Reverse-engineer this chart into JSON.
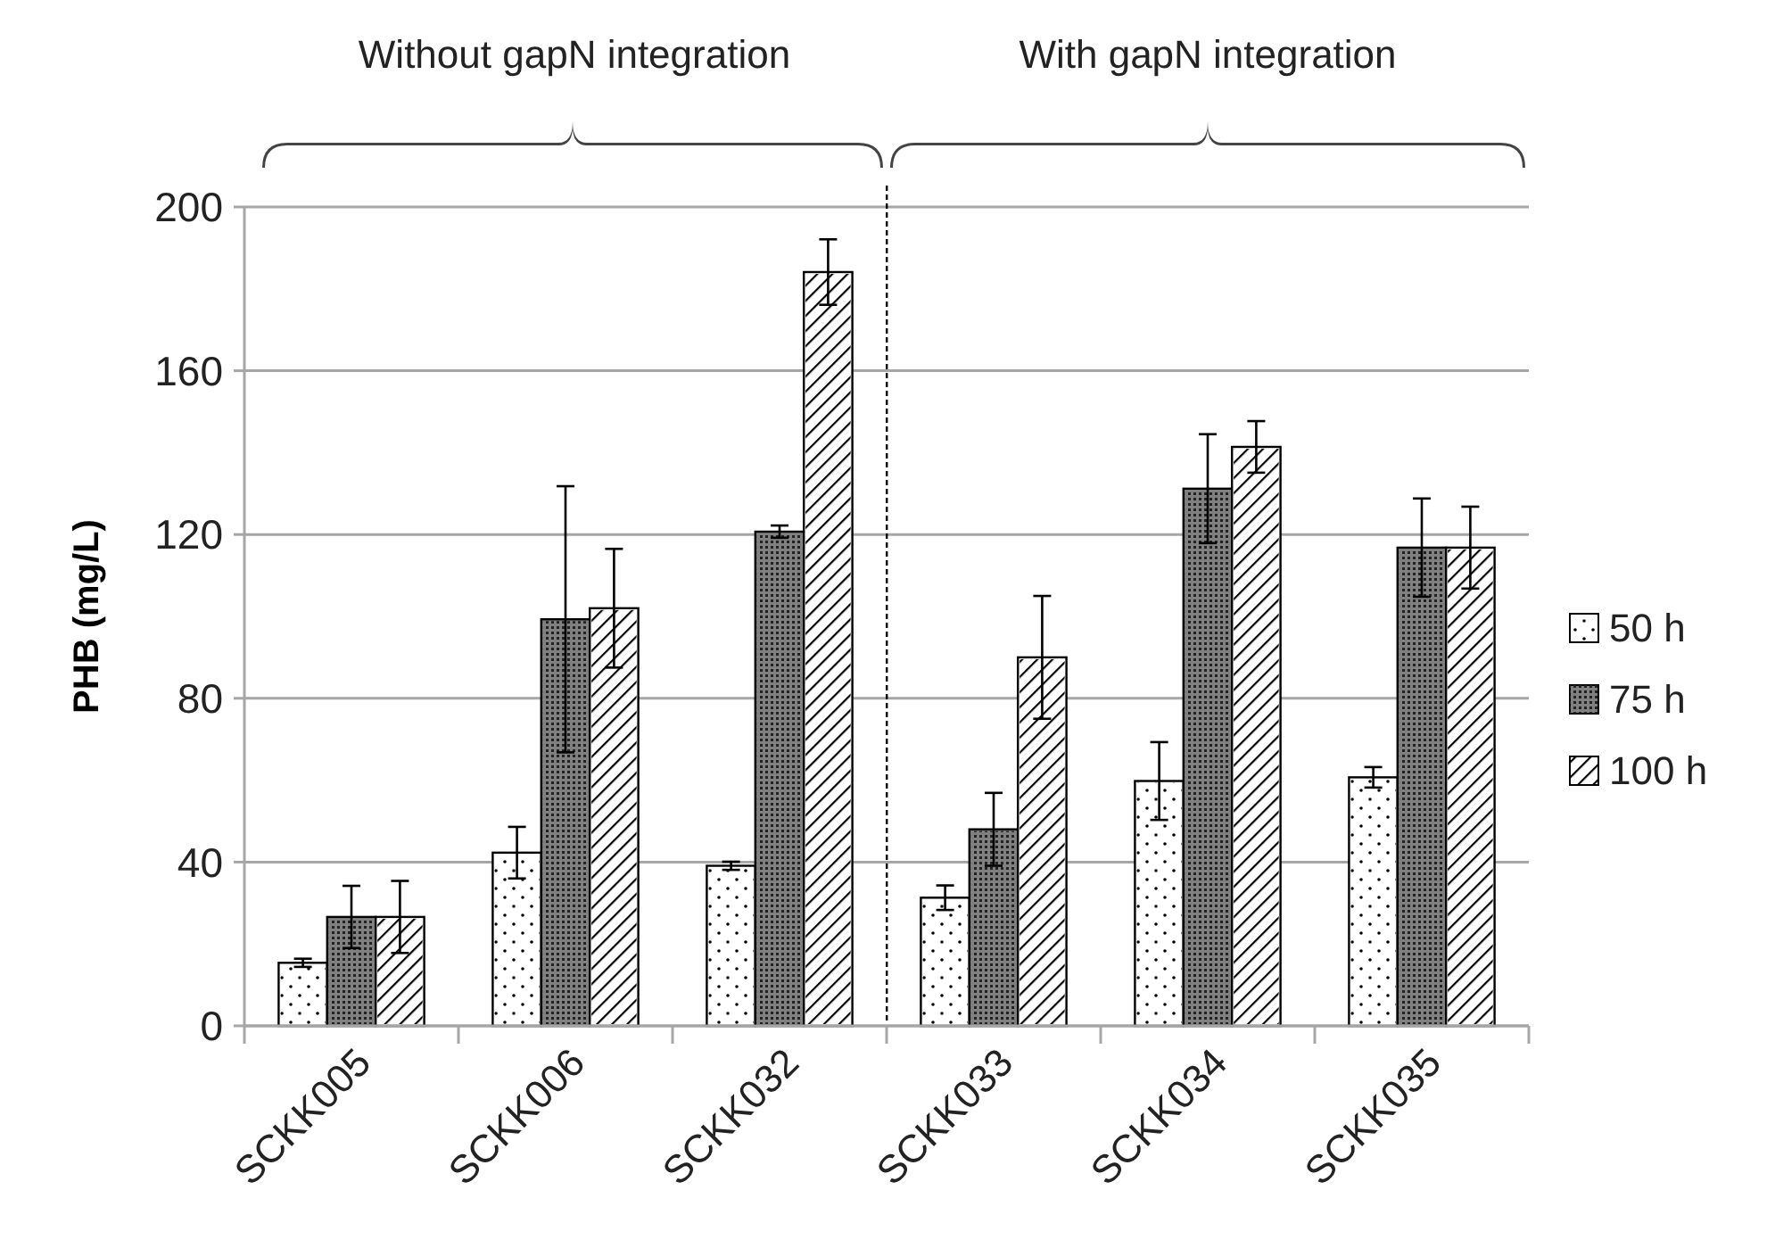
{
  "chart_data": {
    "type": "bar",
    "ylabel": "PHB (mg/L)",
    "categories": [
      "SCKK005",
      "SCKK006",
      "SCKK032",
      "SCKK033",
      "SCKK034",
      "SCKK035"
    ],
    "series": [
      {
        "name": "50 h",
        "color": "#ffffff",
        "values": [
          15.4,
          42.3,
          39.1,
          31.3,
          59.8,
          60.7
        ],
        "errors": [
          1,
          6.3,
          1,
          3,
          9.5,
          2.5
        ]
      },
      {
        "name": "75 h",
        "color": "#808080",
        "values": [
          26.6,
          99.3,
          120.7,
          48,
          131.2,
          116.8
        ],
        "errors": [
          7.6,
          32.5,
          1.5,
          8.9,
          13.3,
          12
        ]
      },
      {
        "name": "100 h",
        "color": "#ffffff",
        "values": [
          26.6,
          102,
          184.1,
          90,
          141.4,
          116.8
        ],
        "errors": [
          8.8,
          14.5,
          8,
          15,
          6.3,
          10
        ]
      }
    ],
    "ylim": [
      0,
      200
    ],
    "yticks": [
      0,
      40,
      80,
      120,
      160,
      200
    ],
    "grid": "y",
    "legend": "right",
    "annotations": [
      "Without gapN integration",
      "With gapN integration"
    ]
  }
}
